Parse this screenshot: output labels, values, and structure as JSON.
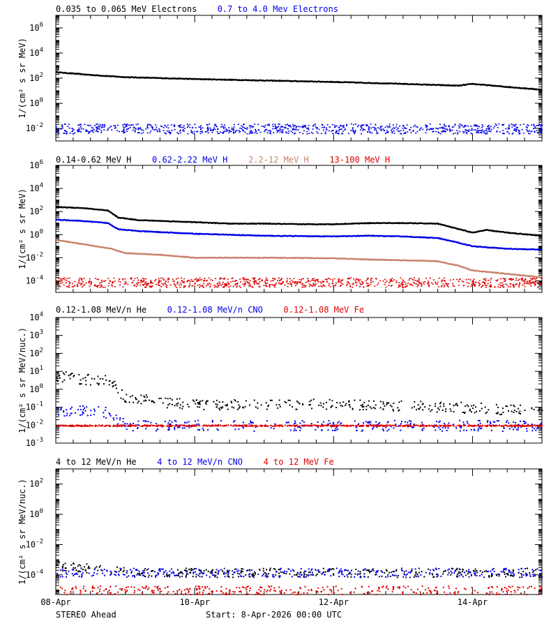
{
  "footer": {
    "mission": "STEREO Ahead",
    "start": "Start:  8-Apr-2026 00:00 UTC"
  },
  "x_axis": {
    "range_days": [
      0,
      7
    ],
    "ticks": [
      {
        "day": 0,
        "label": "08-Apr"
      },
      {
        "day": 2,
        "label": "10-Apr"
      },
      {
        "day": 4,
        "label": "12-Apr"
      },
      {
        "day": 6,
        "label": "14-Apr"
      }
    ],
    "minor_step_days": 0.25
  },
  "chart_data": [
    {
      "type": "scatter",
      "ylabel": "1/(cm² s sr MeV)",
      "ylog": true,
      "ylim": [
        0.001,
        10000000
      ],
      "ytick_exponents": [
        -2,
        0,
        2,
        4,
        6
      ],
      "legend": [
        {
          "name": "0.035 to 0.065 MeV Electrons",
          "color": "#000000"
        },
        {
          "name": "0.7 to 4.0 Mev Electrons",
          "color": "#0000e6"
        }
      ],
      "series": [
        {
          "name": "0.035 to 0.065 MeV Electrons",
          "color": "#000000",
          "style": "line",
          "x": [
            0,
            0.5,
            1.0,
            2.0,
            3.0,
            4.0,
            5.0,
            5.8,
            6.0,
            6.5,
            7.0
          ],
          "y": [
            300,
            180,
            120,
            85,
            65,
            50,
            35,
            25,
            35,
            20,
            12
          ]
        },
        {
          "name": "0.7 to 4.0 Mev Electrons",
          "color": "#0000e6",
          "style": "band",
          "x": [
            0,
            7
          ],
          "y": [
            0.012,
            0.012
          ],
          "spread": [
            0.004,
            0.025
          ]
        }
      ]
    },
    {
      "type": "scatter",
      "ylabel": "1/(cm² s sr MeV)",
      "ylog": true,
      "ylim": [
        1e-05,
        1000000
      ],
      "ytick_exponents": [
        -4,
        -2,
        0,
        2,
        4,
        6
      ],
      "legend": [
        {
          "name": "0.14-0.62 MeV H",
          "color": "#000000"
        },
        {
          "name": "0.62-2.22 MeV H",
          "color": "#0000e6"
        },
        {
          "name": "2.2-12 MeV H",
          "color": "#c8826a"
        },
        {
          "name": "13-100 MeV H",
          "color": "#e00000"
        }
      ],
      "series": [
        {
          "name": "0.14-0.62 MeV H",
          "color": "#000000",
          "style": "line",
          "x": [
            0,
            0.4,
            0.75,
            0.9,
            1.2,
            2.0,
            2.5,
            3.0,
            3.5,
            4.0,
            4.5,
            5.0,
            5.5,
            5.8,
            6.0,
            6.2,
            6.5,
            7.0
          ],
          "y": [
            250,
            200,
            120,
            30,
            18,
            12,
            9,
            9,
            8,
            8,
            10,
            10,
            9,
            3,
            1.5,
            2.5,
            1.5,
            0.8
          ]
        },
        {
          "name": "0.62-2.22 MeV H",
          "color": "#0000e6",
          "style": "line",
          "x": [
            0,
            0.4,
            0.75,
            0.9,
            1.2,
            2.0,
            3.0,
            4.0,
            4.5,
            5.0,
            5.5,
            5.8,
            6.0,
            6.5,
            7.0
          ],
          "y": [
            20,
            15,
            10,
            3,
            2,
            1.2,
            0.8,
            0.7,
            0.8,
            0.7,
            0.5,
            0.2,
            0.1,
            0.06,
            0.05
          ]
        },
        {
          "name": "2.2-12 MeV H",
          "color": "#c8826a",
          "style": "line",
          "x": [
            0,
            0.4,
            0.8,
            1.0,
            1.5,
            2.0,
            3.0,
            4.0,
            4.5,
            5.0,
            5.5,
            5.8,
            6.0,
            6.5,
            7.0
          ],
          "y": [
            0.35,
            0.15,
            0.06,
            0.025,
            0.018,
            0.01,
            0.01,
            0.009,
            0.007,
            0.006,
            0.005,
            0.002,
            0.0008,
            0.0004,
            0.0002
          ]
        },
        {
          "name": "13-100 MeV H",
          "color": "#e00000",
          "style": "band",
          "x": [
            0,
            7
          ],
          "y": [
            8e-05,
            8e-05
          ],
          "spread": [
            3e-05,
            0.0002
          ]
        }
      ]
    },
    {
      "type": "scatter",
      "ylabel": "1/(cm² s sr MeV/nuc.)",
      "ylog": true,
      "ylim": [
        0.001,
        10000
      ],
      "ytick_exponents": [
        -3,
        -2,
        -1,
        0,
        1,
        2,
        3,
        4
      ],
      "legend": [
        {
          "name": "0.12-1.08 MeV/n He",
          "color": "#000000"
        },
        {
          "name": "0.12-1.08 MeV/n CNO",
          "color": "#0000e6"
        },
        {
          "name": "0.12-1.08 MeV Fe",
          "color": "#e00000"
        }
      ],
      "series": [
        {
          "name": "0.12-1.08 MeV/n He",
          "color": "#000000",
          "style": "scatter",
          "x": [
            0,
            0.4,
            0.8,
            0.9,
            1.0,
            1.5,
            2.0,
            3.0,
            4.0,
            5.0,
            6.0,
            7.0
          ],
          "y": [
            6,
            4,
            3,
            0.8,
            0.4,
            0.2,
            0.15,
            0.15,
            0.15,
            0.12,
            0.1,
            0.06
          ]
        },
        {
          "name": "0.12-1.08 MeV/n CNO",
          "color": "#0000e6",
          "style": "scatter",
          "x": [
            0,
            0.4,
            0.8,
            1.0,
            7.0
          ],
          "y": [
            0.07,
            0.07,
            0.05,
            0.01,
            0.01
          ]
        },
        {
          "name": "0.12-1.08 MeV Fe",
          "color": "#e00000",
          "style": "band",
          "x": [
            0,
            7
          ],
          "y": [
            0.01,
            0.01
          ],
          "spread": [
            0.009,
            0.011
          ]
        }
      ]
    },
    {
      "type": "scatter",
      "ylabel": "1/(cm² s sr MeV/nuc.)",
      "ylog": true,
      "ylim": [
        5e-06,
        1000
      ],
      "ytick_exponents": [
        -4,
        -2,
        0,
        2
      ],
      "legend": [
        {
          "name": "4 to 12 MeV/n He",
          "color": "#000000"
        },
        {
          "name": "4 to 12 MeV/n CNO",
          "color": "#0000e6"
        },
        {
          "name": "4 to 12 MeV Fe",
          "color": "#e00000"
        }
      ],
      "series": [
        {
          "name": "4 to 12 MeV/n He",
          "color": "#000000",
          "style": "scatter",
          "x": [
            0,
            0.4,
            1.0,
            2.0,
            4.0,
            7.0
          ],
          "y": [
            0.0004,
            0.0003,
            0.00018,
            0.00015,
            0.00015,
            0.00015
          ]
        },
        {
          "name": "4 to 12 MeV/n CNO",
          "color": "#0000e6",
          "style": "scatter",
          "x": [
            0,
            7
          ],
          "y": [
            0.00015,
            0.00015
          ]
        },
        {
          "name": "4 to 12 MeV Fe",
          "color": "#e00000",
          "style": "scatter",
          "x": [
            0,
            0.2
          ],
          "y": [
            1e-05,
            1e-05
          ]
        }
      ]
    }
  ]
}
